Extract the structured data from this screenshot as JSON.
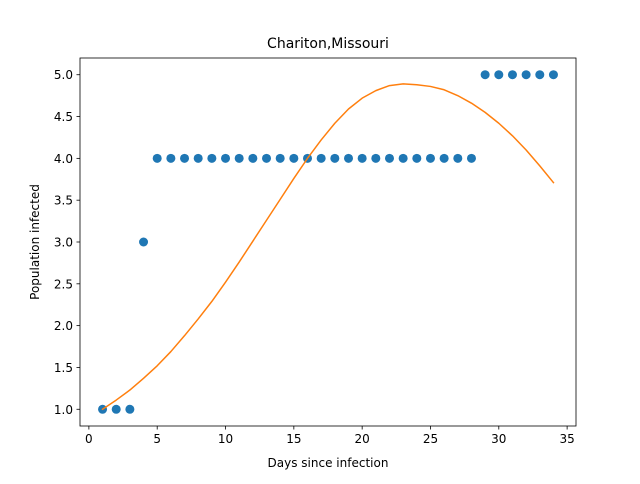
{
  "chart_data": {
    "type": "scatter",
    "title": "Chariton,Missouri",
    "xlabel": "Days since infection",
    "ylabel": "Population infected",
    "xlim": [
      -0.65,
      35.65
    ],
    "ylim": [
      0.8,
      5.2
    ],
    "xticks": [
      0,
      5,
      10,
      15,
      20,
      25,
      30,
      35
    ],
    "yticks": [
      1.0,
      1.5,
      2.0,
      2.5,
      3.0,
      3.5,
      4.0,
      4.5,
      5.0
    ],
    "ytick_labels": [
      "1.0",
      "1.5",
      "2.0",
      "2.5",
      "3.0",
      "3.5",
      "4.0",
      "4.5",
      "5.0"
    ],
    "grid": false,
    "series": [
      {
        "kind": "scatter",
        "color": "#1f77b4",
        "x": [
          1,
          2,
          3,
          4,
          5,
          6,
          7,
          8,
          9,
          10,
          11,
          12,
          13,
          14,
          15,
          16,
          17,
          18,
          19,
          20,
          21,
          22,
          23,
          24,
          25,
          26,
          27,
          28,
          29,
          30,
          31,
          32,
          33,
          34
        ],
        "y": [
          1,
          1,
          1,
          3,
          4,
          4,
          4,
          4,
          4,
          4,
          4,
          4,
          4,
          4,
          4,
          4,
          4,
          4,
          4,
          4,
          4,
          4,
          4,
          4,
          4,
          4,
          4,
          4,
          5,
          5,
          5,
          5,
          5,
          5
        ]
      },
      {
        "kind": "line",
        "color": "#ff7f0e",
        "x": [
          1,
          2,
          3,
          4,
          5,
          6,
          7,
          8,
          9,
          10,
          11,
          12,
          13,
          14,
          15,
          16,
          17,
          18,
          19,
          20,
          21,
          22,
          23,
          24,
          25,
          26,
          27,
          28,
          29,
          30,
          31,
          32,
          33,
          34
        ],
        "y": [
          1.0,
          1.11,
          1.23,
          1.37,
          1.52,
          1.69,
          1.88,
          2.08,
          2.29,
          2.52,
          2.76,
          3.01,
          3.26,
          3.51,
          3.76,
          4.0,
          4.22,
          4.42,
          4.59,
          4.72,
          4.81,
          4.87,
          4.89,
          4.88,
          4.86,
          4.82,
          4.75,
          4.66,
          4.55,
          4.42,
          4.27,
          4.1,
          3.91,
          3.71
        ]
      }
    ]
  }
}
